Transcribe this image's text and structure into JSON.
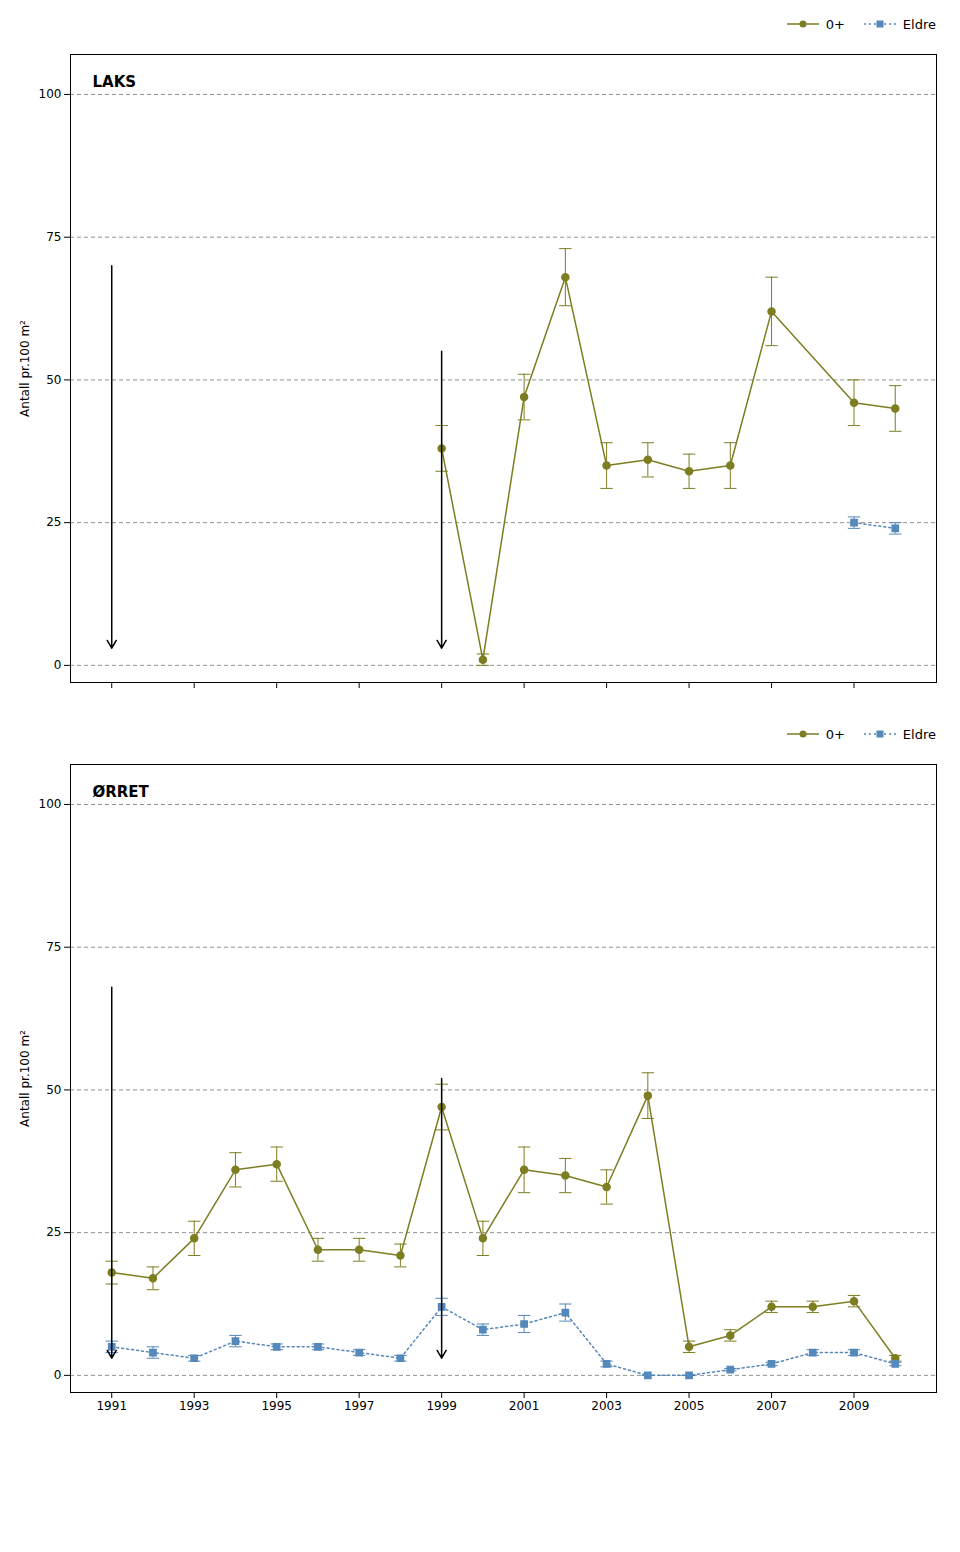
{
  "chart_data": [
    {
      "type": "line",
      "title": "LAKS",
      "y_label": "Antall pr.100 m²",
      "xlim": [
        1990,
        2011
      ],
      "xticks": [
        1991,
        1993,
        1995,
        1997,
        1999,
        2001,
        2003,
        2005,
        2007,
        2009
      ],
      "ylim": [
        -3,
        107
      ],
      "yticks": [
        0,
        25,
        50,
        75,
        100
      ],
      "grid": true,
      "legend": "upper right",
      "tick_labels": "y",
      "series": [
        {
          "name": "0+",
          "color": "#7d7d22",
          "marker": "circle",
          "line_style": "solid",
          "x": [
            1999,
            2000,
            2001,
            2002,
            2003,
            2004,
            2005,
            2006,
            2007,
            2009,
            2010
          ],
          "values": [
            38,
            1,
            47,
            68,
            35,
            36,
            34,
            35,
            62,
            46,
            45
          ],
          "errors": [
            4,
            1,
            4,
            5,
            4,
            3,
            3,
            4,
            6,
            4,
            4
          ]
        },
        {
          "name": "Eldre",
          "color": "#5588bb",
          "marker": "square",
          "line_style": "dotted",
          "x": [
            2009,
            2010
          ],
          "values": [
            25,
            24
          ],
          "errors": [
            1,
            1
          ]
        }
      ],
      "annotations": [
        {
          "type": "arrow",
          "x": 1991,
          "y_start": 70,
          "y_end": 3
        },
        {
          "type": "arrow",
          "x": 1999,
          "y_start": 55,
          "y_end": 3
        }
      ]
    },
    {
      "type": "line",
      "title": "ØRRET",
      "y_label": "Antall pr.100 m²",
      "xlim": [
        1990,
        2011
      ],
      "xticks": [
        1991,
        1993,
        1995,
        1997,
        1999,
        2001,
        2003,
        2005,
        2007,
        2009
      ],
      "ylim": [
        -3,
        107
      ],
      "yticks": [
        0,
        25,
        50,
        75,
        100
      ],
      "grid": true,
      "legend": "upper right",
      "series": [
        {
          "name": "0+",
          "color": "#7d7d22",
          "marker": "circle",
          "line_style": "solid",
          "x": [
            1991,
            1992,
            1993,
            1994,
            1995,
            1996,
            1997,
            1998,
            1999,
            2000,
            2001,
            2002,
            2003,
            2004,
            2005,
            2006,
            2007,
            2008,
            2009,
            2010
          ],
          "values": [
            18,
            17,
            24,
            36,
            37,
            22,
            22,
            21,
            47,
            24,
            36,
            35,
            33,
            49,
            5,
            7,
            12,
            12,
            13,
            3
          ],
          "errors": [
            2,
            2,
            3,
            3,
            3,
            2,
            2,
            2,
            4,
            3,
            4,
            3,
            3,
            4,
            1,
            1,
            1,
            1,
            1,
            0.5
          ]
        },
        {
          "name": "Eldre",
          "color": "#5588bb",
          "marker": "square",
          "line_style": "dotted",
          "x": [
            1991,
            1992,
            1993,
            1994,
            1995,
            1996,
            1997,
            1998,
            1999,
            2000,
            2001,
            2002,
            2003,
            2004,
            2005,
            2006,
            2007,
            2008,
            2009,
            2010
          ],
          "values": [
            5,
            4,
            3,
            6,
            5,
            5,
            4,
            3,
            12,
            8,
            9,
            11,
            2,
            0,
            0,
            1,
            2,
            4,
            4,
            2
          ],
          "errors": [
            1,
            1,
            0.5,
            1,
            0.5,
            0.5,
            0.5,
            0.5,
            1.5,
            1,
            1.5,
            1.5,
            0.5,
            0,
            0,
            0.2,
            0.3,
            0.5,
            0.5,
            0.3
          ]
        }
      ],
      "annotations": [
        {
          "type": "arrow",
          "x": 1991,
          "y_start": 68,
          "y_end": 3
        },
        {
          "type": "arrow",
          "x": 1999,
          "y_start": 52,
          "y_end": 3
        }
      ]
    }
  ]
}
